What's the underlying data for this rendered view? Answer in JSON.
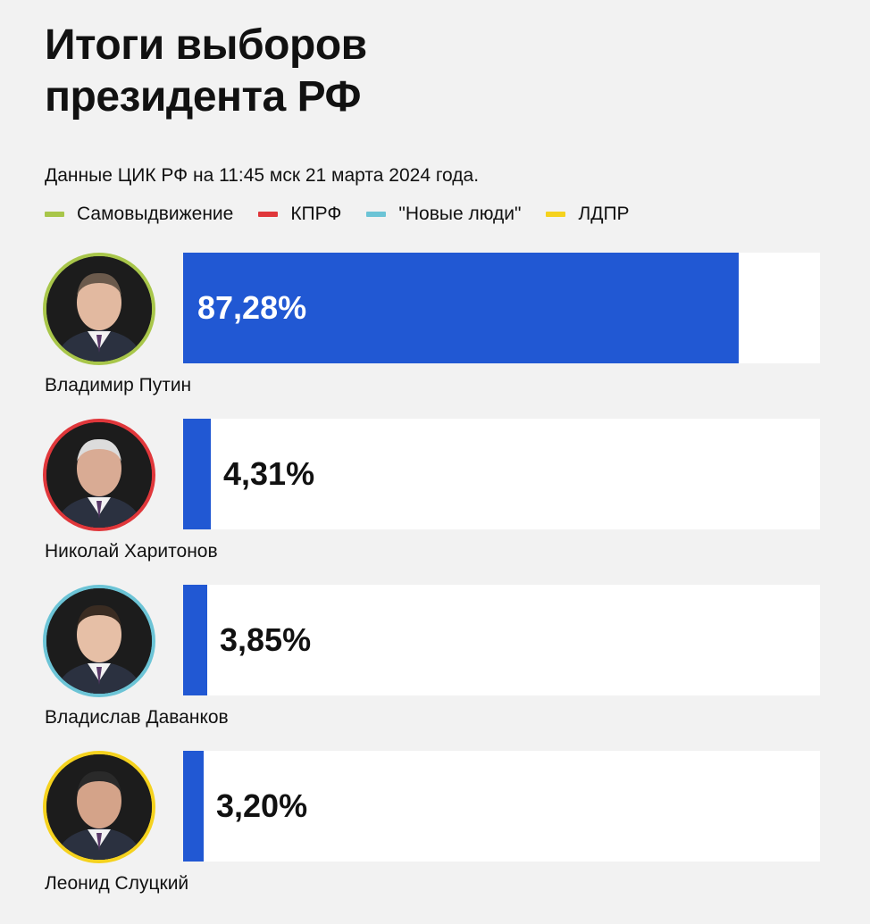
{
  "title": [
    "Итоги выборов",
    "президента РФ"
  ],
  "subtitle": "Данные ЦИК РФ на 11:45 мск 21 марта 2024 года.",
  "legend": [
    {
      "label": "Самовыдвижение",
      "color": "#a8c64a"
    },
    {
      "label": "КПРФ",
      "color": "#e0373b"
    },
    {
      "label": "\"Новые люди\"",
      "color": "#6cc4d6"
    },
    {
      "label": "ЛДПР",
      "color": "#f5d21e"
    }
  ],
  "chart_data": {
    "type": "bar",
    "orientation": "horizontal",
    "title": "Итоги выборов президента РФ",
    "subtitle": "Данные ЦИК РФ на 11:45 мск 21 марта 2024 года.",
    "categories": [
      "Владимир Путин",
      "Николай Харитонов",
      "Владислав Даванков",
      "Леонид Слуцкий"
    ],
    "values": [
      87.28,
      4.31,
      3.85,
      3.2
    ],
    "value_labels": [
      "87,28%",
      "4,31%",
      "3,85%",
      "3,20%"
    ],
    "parties": [
      "Самовыдвижение",
      "КПРФ",
      "\"Новые люди\"",
      "ЛДПР"
    ],
    "xlim": [
      0,
      100
    ],
    "bar_color": "#2158d3",
    "grid": false,
    "legend_position": "top-left"
  },
  "candidates": [
    {
      "name": "Владимир Путин",
      "value": 87.28,
      "label": "87,28%",
      "ring_color": "#a8c64a",
      "photo_icon": "candidate-photo-icon"
    },
    {
      "name": "Николай Харитонов",
      "value": 4.31,
      "label": "4,31%",
      "ring_color": "#e0373b",
      "photo_icon": "candidate-photo-icon"
    },
    {
      "name": "Владислав Даванков",
      "value": 3.85,
      "label": "3,85%",
      "ring_color": "#6cc4d6",
      "photo_icon": "candidate-photo-icon"
    },
    {
      "name": "Леонид Слуцкий",
      "value": 3.2,
      "label": "3,20%",
      "ring_color": "#f5d21e",
      "photo_icon": "candidate-photo-icon"
    }
  ]
}
